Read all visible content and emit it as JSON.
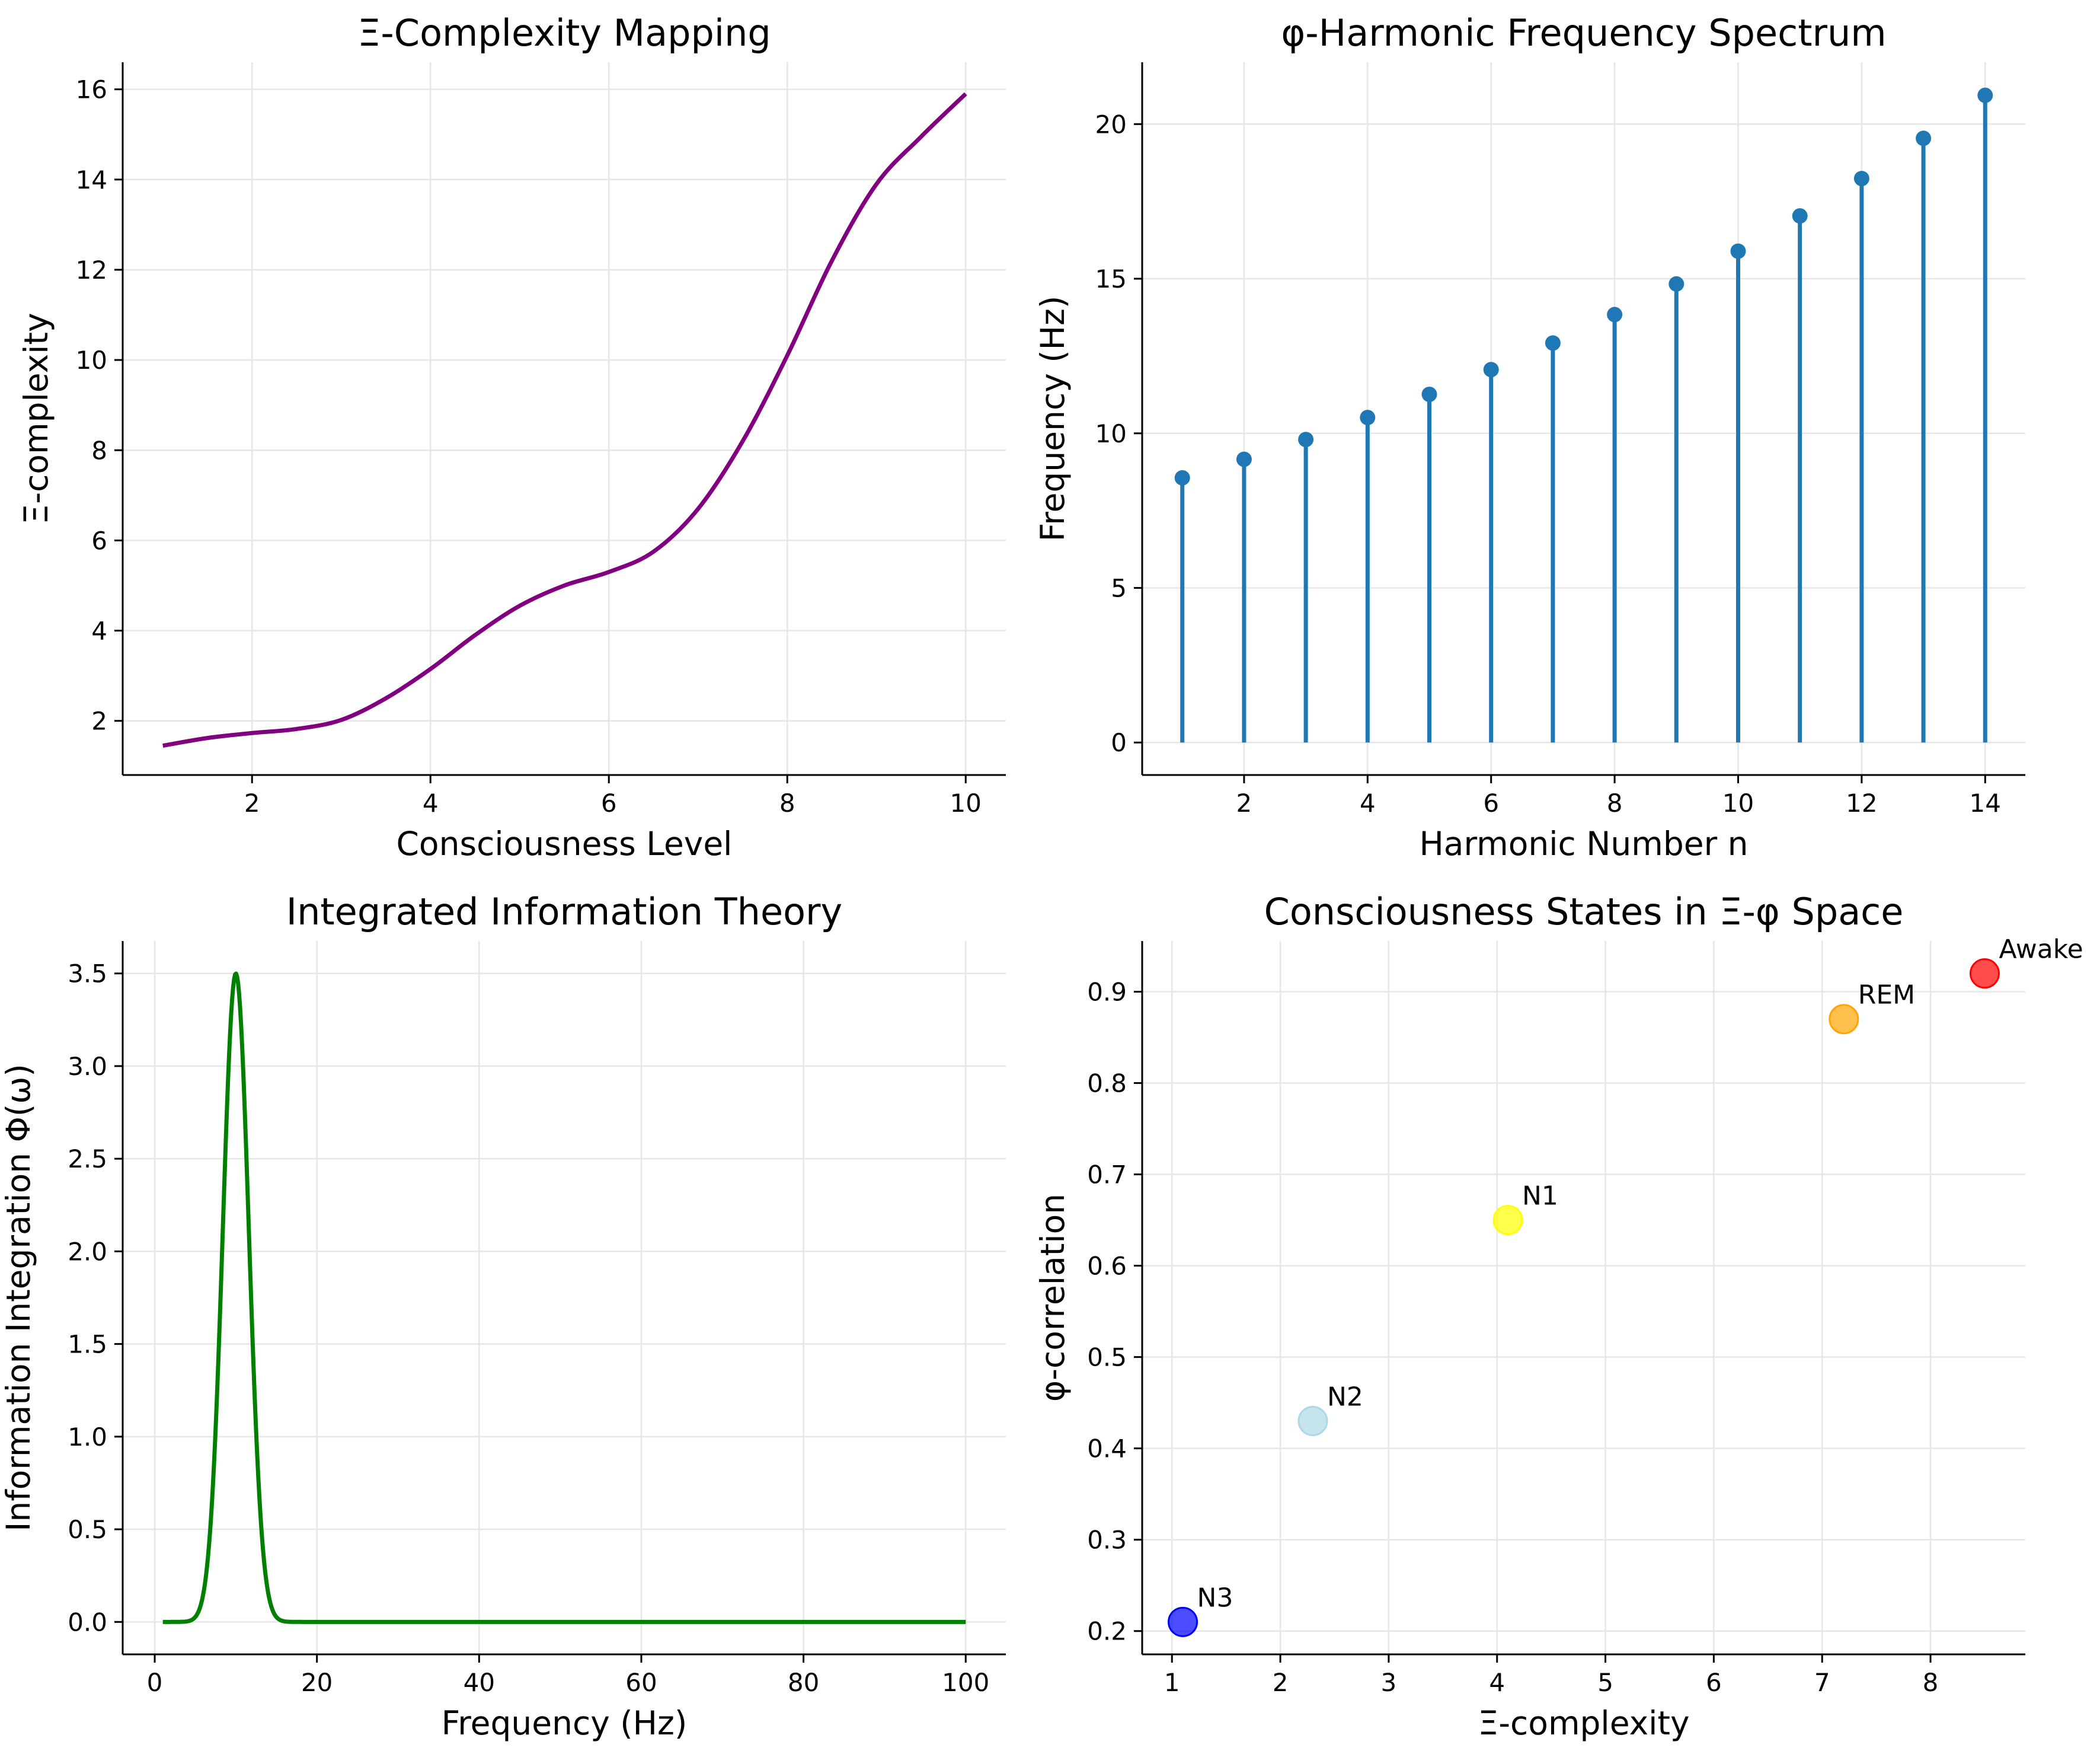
{
  "chart_data": [
    {
      "type": "line",
      "title": "Ξ-Complexity Mapping",
      "xlabel": "Consciousness Level",
      "ylabel": "Ξ-complexity",
      "xlim": [
        0.55,
        10.45
      ],
      "ylim": [
        0.8,
        16.6
      ],
      "xticks": [
        2,
        4,
        6,
        8,
        10
      ],
      "yticks": [
        2,
        4,
        6,
        8,
        10,
        12,
        14,
        16
      ],
      "grid": true,
      "color": "#800080",
      "series": [
        {
          "x": [
            1,
            1.5,
            2,
            2.5,
            3,
            3.5,
            4,
            4.5,
            5,
            5.5,
            6,
            6.5,
            7,
            7.5,
            8,
            8.5,
            9,
            9.5,
            10
          ],
          "y": [
            1.45,
            1.62,
            1.73,
            1.82,
            2.02,
            2.5,
            3.15,
            3.9,
            4.55,
            5.0,
            5.3,
            5.75,
            6.7,
            8.2,
            10.1,
            12.2,
            13.9,
            14.95,
            15.9
          ]
        }
      ]
    },
    {
      "type": "stem",
      "title": "φ-Harmonic Frequency Spectrum",
      "xlabel": "Harmonic Number n",
      "ylabel": "Frequency (Hz)",
      "xlim": [
        0.35,
        14.65
      ],
      "ylim": [
        -1.05,
        22.0
      ],
      "xticks": [
        2,
        4,
        6,
        8,
        10,
        12,
        14
      ],
      "yticks": [
        0,
        5,
        10,
        15,
        20
      ],
      "grid": true,
      "color": "#1f77b4",
      "x": [
        1,
        2,
        3,
        4,
        5,
        6,
        7,
        8,
        9,
        10,
        11,
        12,
        13,
        14
      ],
      "values": [
        8.56,
        9.16,
        9.8,
        10.51,
        11.26,
        12.06,
        12.92,
        13.84,
        14.83,
        15.89,
        17.03,
        18.24,
        19.54,
        20.93
      ]
    },
    {
      "type": "line",
      "title": "Integrated Information Theory",
      "xlabel": "Frequency (Hz)",
      "ylabel": "Information Integration Φ(ω)",
      "xlim": [
        -3.95,
        104.95
      ],
      "ylim": [
        -0.175,
        3.675
      ],
      "xticks": [
        0,
        20,
        40,
        60,
        80,
        100
      ],
      "yticks": [
        0.0,
        0.5,
        1.0,
        1.5,
        2.0,
        2.5,
        3.0,
        3.5
      ],
      "grid": true,
      "color": "#008000",
      "series": [
        {
          "peak": 3.5,
          "center": 10,
          "sigma": 1.6,
          "x_range": [
            1,
            100
          ]
        }
      ]
    },
    {
      "type": "scatter",
      "title": "Consciousness States in Ξ-φ Space",
      "xlabel": "Ξ-complexity",
      "ylabel": "φ-correlation",
      "xlim": [
        0.725,
        8.875
      ],
      "ylim": [
        0.1745,
        0.9555
      ],
      "xticks": [
        1,
        2,
        3,
        4,
        5,
        6,
        7,
        8
      ],
      "yticks": [
        0.2,
        0.3,
        0.4,
        0.5,
        0.6,
        0.7,
        0.8,
        0.9
      ],
      "grid": true,
      "points": [
        {
          "label": "Awake",
          "x": 8.5,
          "y": 0.92,
          "color": "#ff0000"
        },
        {
          "label": "REM",
          "x": 7.2,
          "y": 0.87,
          "color": "#ffa500"
        },
        {
          "label": "N1",
          "x": 4.1,
          "y": 0.65,
          "color": "#ffff00"
        },
        {
          "label": "N2",
          "x": 2.3,
          "y": 0.43,
          "color": "#add8e6"
        },
        {
          "label": "N3",
          "x": 1.1,
          "y": 0.21,
          "color": "#0000ff"
        }
      ]
    }
  ]
}
